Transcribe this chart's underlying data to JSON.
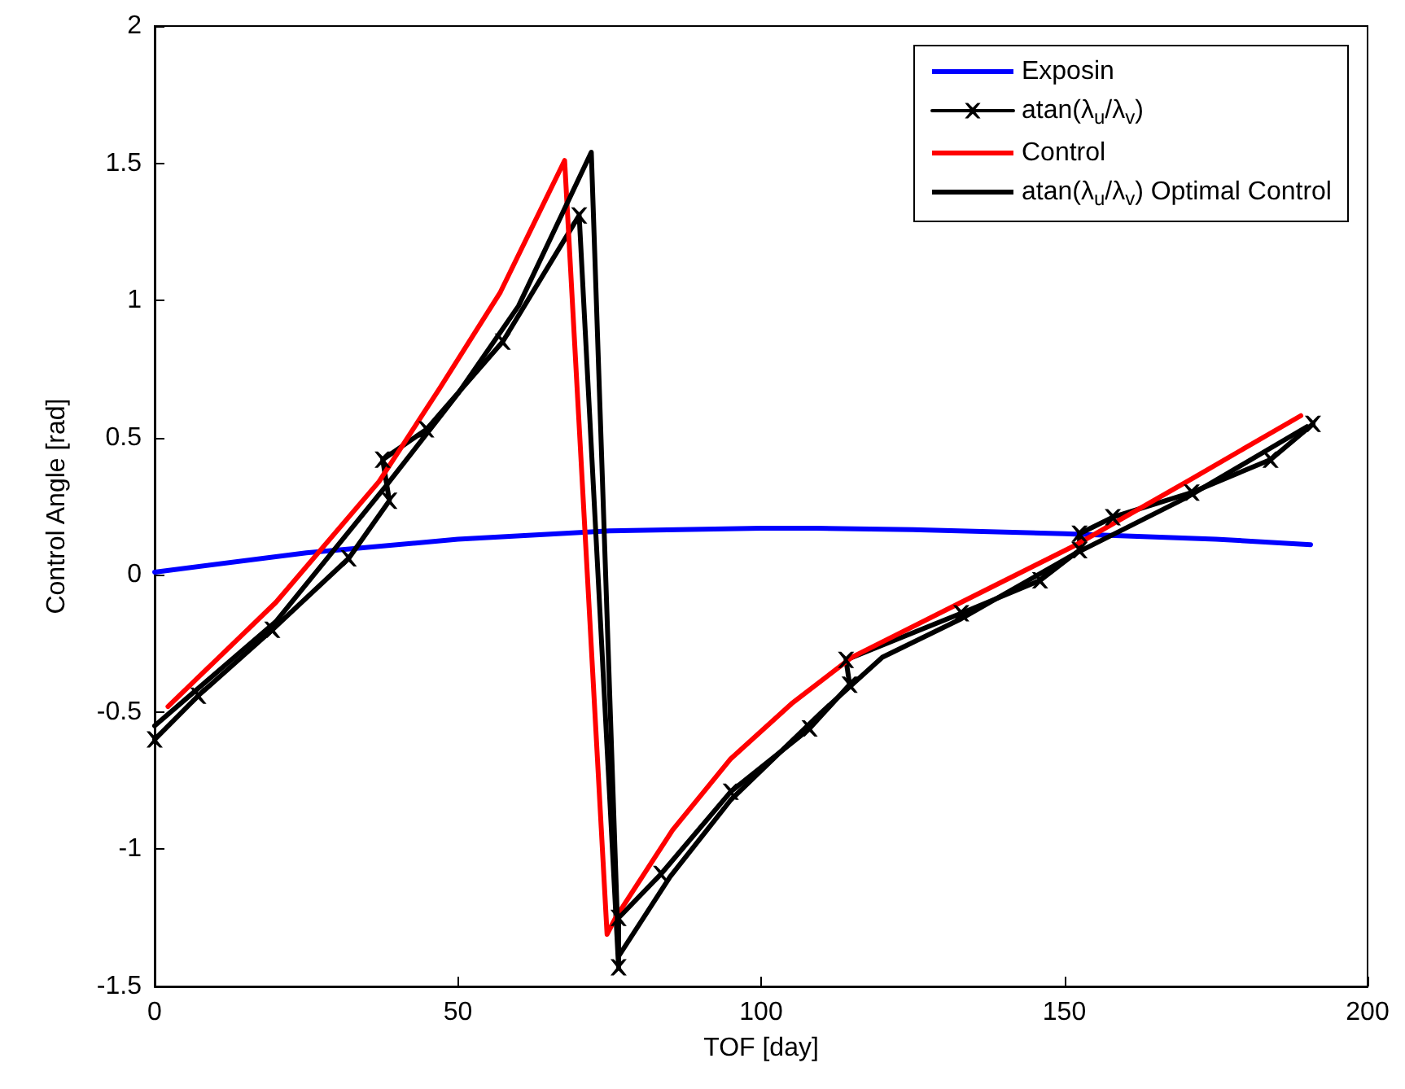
{
  "chart_data": {
    "type": "line",
    "xlabel": "TOF [day]",
    "ylabel": "Control Angle [rad]",
    "xlim": [
      0,
      200
    ],
    "xticks": [
      0,
      50,
      100,
      150,
      200
    ],
    "ylim": [
      -1.5,
      2
    ],
    "yticks": [
      -1.5,
      -1,
      -0.5,
      0,
      0.5,
      1,
      1.5,
      2
    ],
    "grid": false,
    "legend": "top right",
    "marker": "none",
    "line_style": "solid",
    "series": [
      {
        "name": "Exposin",
        "color": "#0000ff",
        "x": [
          0,
          25,
          50,
          75,
          100,
          109,
          125,
          150,
          175,
          190.6
        ],
        "values": [
          0.01,
          0.08,
          0.13,
          0.16,
          0.17,
          0.17,
          0.165,
          0.15,
          0.13,
          0.11
        ]
      },
      {
        "name": "atan(λ$_{u}$/λ$_{v}$)",
        "color": "#000000",
        "marker": "cross",
        "x": [
          0,
          7.2,
          19.4,
          32,
          38.7,
          37.6,
          44.8,
          57.4,
          70,
          76.5,
          76.5,
          83.5,
          95,
          108,
          114.6,
          114,
          133,
          146,
          152.5,
          152.5,
          158,
          171,
          184,
          191
        ],
        "values": [
          -0.6,
          -0.44,
          -0.2,
          0.06,
          0.27,
          0.42,
          0.53,
          0.85,
          1.31,
          -1.43,
          -1.25,
          -1.09,
          -0.79,
          -0.56,
          -0.4,
          -0.31,
          -0.14,
          -0.02,
          0.09,
          0.15,
          0.21,
          0.3,
          0.42,
          0.55
        ]
      },
      {
        "name": "Control",
        "color": "#ff0000",
        "x": [
          2.2,
          20,
          37,
          47,
          57,
          67.6,
          74.6,
          76,
          85.4,
          95,
          105,
          115,
          133,
          152,
          171,
          189
        ],
        "values": [
          -0.48,
          -0.1,
          0.34,
          0.68,
          1.03,
          1.51,
          -1.31,
          -1.25,
          -0.93,
          -0.67,
          -0.47,
          -0.3,
          -0.1,
          0.11,
          0.35,
          0.58
        ]
      },
      {
        "name": "atan(λ$_{u}$/λ$_{v}$) Optimal Control",
        "color": "#000000",
        "x": [
          0,
          20,
          38,
          50,
          60,
          72,
          76.5,
          85,
          95,
          110,
          120,
          133,
          152,
          170,
          190
        ],
        "values": [
          -0.55,
          -0.17,
          0.32,
          0.66,
          0.98,
          1.54,
          -1.39,
          -1.1,
          -0.82,
          -0.5,
          -0.3,
          -0.16,
          0.08,
          0.28,
          0.54
        ]
      }
    ]
  }
}
